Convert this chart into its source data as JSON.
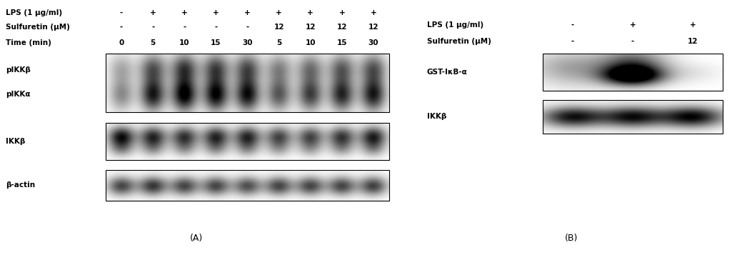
{
  "fig_width": 10.25,
  "fig_height": 3.64,
  "dpi": 100,
  "bg_color": "#ffffff",
  "panel_A": {
    "label": "(A)",
    "lps_label": "LPS (1 μg/ml)",
    "lps_values": [
      "-",
      "+",
      "+",
      "+",
      "+",
      "+",
      "+",
      "+",
      "+"
    ],
    "sulfuretin_label": "Sulfuretin (μM)",
    "sulfuretin_values": [
      "-",
      "-",
      "-",
      "-",
      "-",
      "12",
      "12",
      "12",
      "12"
    ],
    "time_label": "Time (min)",
    "time_values": [
      "0",
      "5",
      "10",
      "15",
      "30",
      "5",
      "10",
      "15",
      "30"
    ],
    "pikk_label_top": "pIKKβ",
    "pikk_label_bot": "pIKKα",
    "ikkb_label": "IKKβ",
    "actin_label": "β-actin",
    "n_lanes": 9
  },
  "panel_B": {
    "label": "(B)",
    "lps_label": "LPS (1 μg/ml)",
    "lps_values": [
      "-",
      "+",
      "+"
    ],
    "sulfuretin_label": "Sulfuretin (μM)",
    "sulfuretin_values": [
      "-",
      "-",
      "12"
    ],
    "gst_label": "GST-IκB-α",
    "ikkb_label": "IKKβ",
    "n_lanes": 3
  }
}
